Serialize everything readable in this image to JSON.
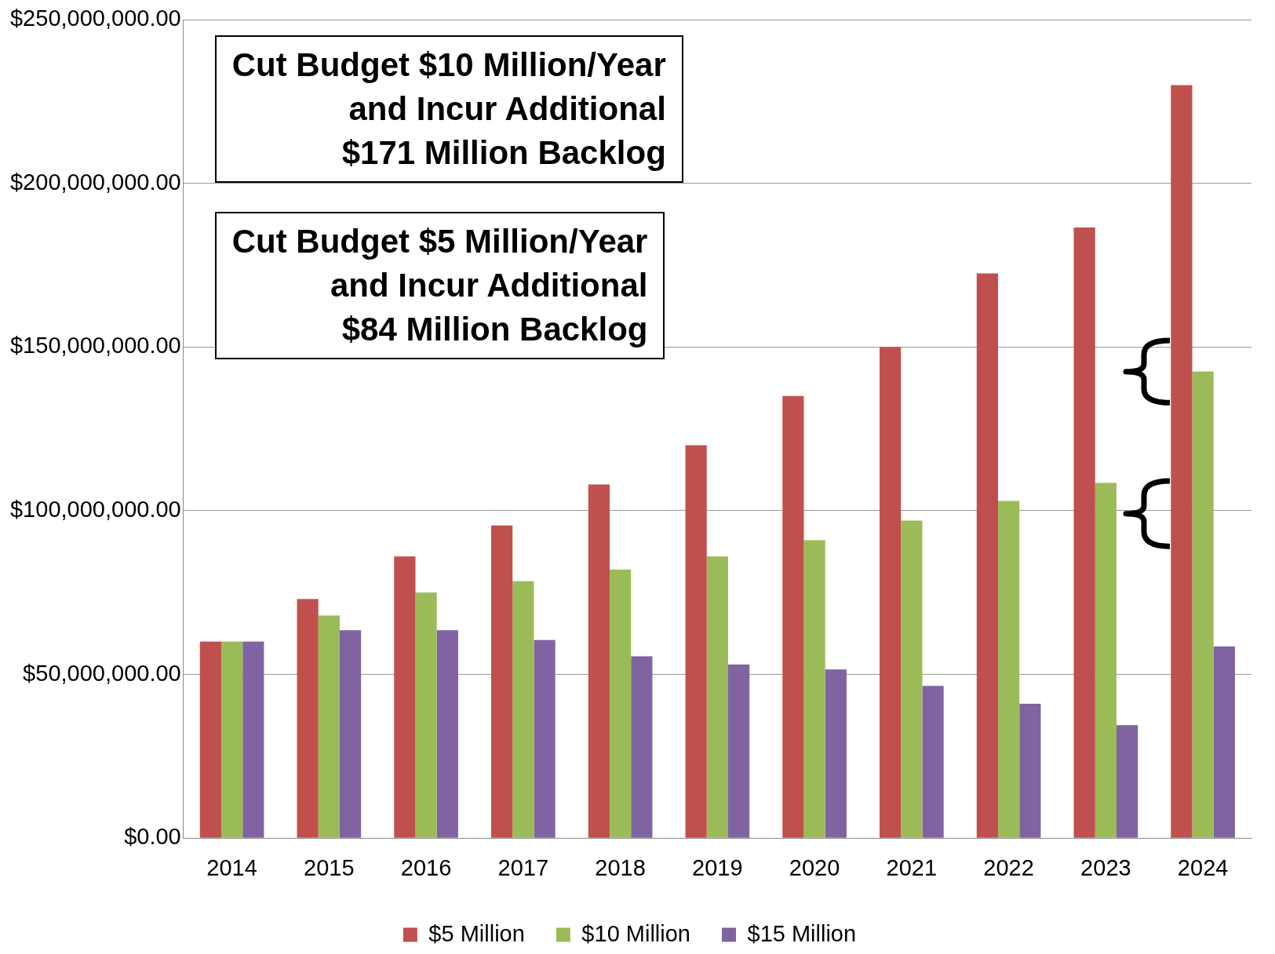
{
  "chart_data": {
    "type": "bar",
    "categories": [
      "2014",
      "2015",
      "2016",
      "2017",
      "2018",
      "2019",
      "2020",
      "2021",
      "2022",
      "2023",
      "2024"
    ],
    "series": [
      {
        "name": "$5 Million",
        "color": "#c0504d",
        "values": [
          60000000,
          73000000,
          86000000,
          95500000,
          108000000,
          120000000,
          135000000,
          150000000,
          172500000,
          186500000,
          230000000
        ]
      },
      {
        "name": "$10 Million",
        "color": "#9bbb59",
        "values": [
          60000000,
          68000000,
          75000000,
          78500000,
          82000000,
          86000000,
          91000000,
          97000000,
          103000000,
          108500000,
          142500000
        ]
      },
      {
        "name": "$15 Million",
        "color": "#8064a2",
        "values": [
          60000000,
          63500000,
          63500000,
          60500000,
          55500000,
          53000000,
          51500000,
          46500000,
          41000000,
          34500000,
          58500000
        ]
      }
    ],
    "ylim": [
      0,
      250000000
    ],
    "yticks": [
      {
        "value": 0,
        "label": "$0.00"
      },
      {
        "value": 50000000,
        "label": "$50,000,000.00"
      },
      {
        "value": 100000000,
        "label": "$100,000,000.00"
      },
      {
        "value": 150000000,
        "label": "$150,000,000.00"
      },
      {
        "value": 200000000,
        "label": "$200,000,000.00"
      },
      {
        "value": 250000000,
        "label": "$250,000,000.00"
      }
    ],
    "grid": "y",
    "legend": "bottom",
    "annotations": [
      "Cut Budget $10 Million/Year\nand Incur Additional\n$171 Million Backlog",
      "Cut Budget $5 Million/Year\nand Incur Additional\n$84 Million Backlog"
    ]
  }
}
